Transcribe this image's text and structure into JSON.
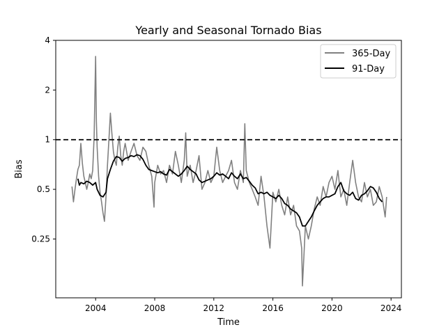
{
  "chart_data": {
    "type": "line",
    "title": "Yearly and Seasonal Tornado Bias",
    "xlabel": "Time",
    "ylabel": "Bias",
    "y_scale": "log2",
    "xlim": [
      2001.3,
      2024.7
    ],
    "ylim": [
      0.11,
      4
    ],
    "x_ticks": [
      {
        "value": 2004,
        "label": "2004"
      },
      {
        "value": 2008,
        "label": "2008"
      },
      {
        "value": 2012,
        "label": "2012"
      },
      {
        "value": 2016,
        "label": "2016"
      },
      {
        "value": 2020,
        "label": "2020"
      },
      {
        "value": 2024,
        "label": "2024"
      }
    ],
    "y_ticks": [
      {
        "value": 0.25,
        "label": "0.25"
      },
      {
        "value": 0.5,
        "label": "0.5"
      },
      {
        "value": 1,
        "label": "1"
      },
      {
        "value": 2,
        "label": "2"
      },
      {
        "value": 4,
        "label": "4"
      }
    ],
    "grid": false,
    "legend_position": "top-right",
    "reference_line": {
      "y": 1,
      "style": "dashed",
      "color": "#000000"
    },
    "series": [
      {
        "name": "365-Day",
        "color": "#808080",
        "x": [
          2002.4,
          2002.5,
          2002.6,
          2002.7,
          2002.8,
          2002.9,
          2003.0,
          2003.1,
          2003.2,
          2003.3,
          2003.4,
          2003.5,
          2003.6,
          2003.7,
          2003.8,
          2003.9,
          2004.0,
          2004.05,
          2004.1,
          2004.2,
          2004.3,
          2004.4,
          2004.5,
          2004.6,
          2004.7,
          2004.8,
          2004.9,
          2005.0,
          2005.1,
          2005.2,
          2005.3,
          2005.4,
          2005.5,
          2005.6,
          2005.7,
          2005.8,
          2005.9,
          2006.0,
          2006.2,
          2006.4,
          2006.6,
          2006.8,
          2007.0,
          2007.2,
          2007.4,
          2007.6,
          2007.8,
          2007.95,
          2008.0,
          2008.2,
          2008.4,
          2008.6,
          2008.8,
          2009.0,
          2009.2,
          2009.4,
          2009.6,
          2009.8,
          2010.0,
          2010.1,
          2010.2,
          2010.4,
          2010.6,
          2010.8,
          2011.0,
          2011.2,
          2011.4,
          2011.6,
          2011.8,
          2012.0,
          2012.2,
          2012.4,
          2012.6,
          2012.8,
          2013.0,
          2013.2,
          2013.4,
          2013.6,
          2013.8,
          2014.0,
          2014.1,
          2014.2,
          2014.4,
          2014.6,
          2014.8,
          2015.0,
          2015.2,
          2015.4,
          2015.6,
          2015.8,
          2016.0,
          2016.2,
          2016.4,
          2016.6,
          2016.8,
          2017.0,
          2017.2,
          2017.4,
          2017.6,
          2017.8,
          2017.95,
          2018.0,
          2018.2,
          2018.4,
          2018.6,
          2018.8,
          2019.0,
          2019.2,
          2019.4,
          2019.6,
          2019.8,
          2020.0,
          2020.2,
          2020.4,
          2020.6,
          2020.8,
          2021.0,
          2021.2,
          2021.4,
          2021.6,
          2021.8,
          2022.0,
          2022.2,
          2022.4,
          2022.6,
          2022.8,
          2023.0,
          2023.2,
          2023.4,
          2023.6,
          2023.7
        ],
        "y": [
          0.52,
          0.42,
          0.5,
          0.58,
          0.66,
          0.7,
          0.95,
          0.72,
          0.6,
          0.55,
          0.5,
          0.55,
          0.62,
          0.58,
          0.65,
          1.05,
          3.2,
          1.3,
          0.9,
          0.6,
          0.48,
          0.42,
          0.36,
          0.32,
          0.45,
          0.7,
          1.0,
          1.45,
          1.1,
          0.85,
          0.75,
          0.7,
          0.9,
          1.05,
          0.8,
          0.7,
          0.85,
          0.95,
          0.75,
          0.85,
          0.95,
          0.8,
          0.75,
          0.9,
          0.85,
          0.7,
          0.6,
          0.39,
          0.55,
          0.7,
          0.62,
          0.65,
          0.55,
          0.7,
          0.62,
          0.85,
          0.7,
          0.55,
          0.75,
          1.1,
          0.6,
          0.7,
          0.55,
          0.65,
          0.8,
          0.5,
          0.55,
          0.65,
          0.55,
          0.6,
          0.9,
          0.65,
          0.55,
          0.6,
          0.65,
          0.75,
          0.55,
          0.5,
          0.65,
          0.55,
          1.25,
          0.65,
          0.55,
          0.5,
          0.45,
          0.4,
          0.6,
          0.45,
          0.3,
          0.22,
          0.48,
          0.42,
          0.5,
          0.4,
          0.35,
          0.45,
          0.35,
          0.4,
          0.3,
          0.28,
          0.22,
          0.13,
          0.3,
          0.25,
          0.3,
          0.38,
          0.45,
          0.4,
          0.52,
          0.45,
          0.55,
          0.6,
          0.5,
          0.65,
          0.45,
          0.5,
          0.4,
          0.55,
          0.75,
          0.55,
          0.45,
          0.42,
          0.55,
          0.45,
          0.5,
          0.4,
          0.42,
          0.52,
          0.45,
          0.34,
          0.45
        ]
      },
      {
        "name": "91-Day",
        "color": "#000000",
        "x": [
          2002.8,
          2002.9,
          2003.0,
          2003.2,
          2003.4,
          2003.6,
          2003.8,
          2004.0,
          2004.1,
          2004.3,
          2004.5,
          2004.7,
          2004.8,
          2005.0,
          2005.2,
          2005.4,
          2005.6,
          2005.8,
          2006.0,
          2006.2,
          2006.4,
          2006.6,
          2006.8,
          2007.0,
          2007.2,
          2007.4,
          2007.6,
          2007.8,
          2008.0,
          2008.2,
          2008.4,
          2008.6,
          2008.8,
          2009.0,
          2009.2,
          2009.4,
          2009.6,
          2009.8,
          2010.0,
          2010.2,
          2010.4,
          2010.6,
          2010.8,
          2011.0,
          2011.2,
          2011.4,
          2011.6,
          2011.8,
          2012.0,
          2012.2,
          2012.4,
          2012.6,
          2012.8,
          2013.0,
          2013.2,
          2013.4,
          2013.6,
          2013.8,
          2014.0,
          2014.2,
          2014.4,
          2014.6,
          2014.8,
          2015.0,
          2015.2,
          2015.4,
          2015.6,
          2015.8,
          2016.0,
          2016.2,
          2016.4,
          2016.6,
          2016.8,
          2017.0,
          2017.2,
          2017.4,
          2017.6,
          2017.8,
          2018.0,
          2018.2,
          2018.4,
          2018.6,
          2018.8,
          2019.0,
          2019.2,
          2019.4,
          2019.6,
          2019.8,
          2020.0,
          2020.2,
          2020.4,
          2020.6,
          2020.8,
          2021.0,
          2021.2,
          2021.4,
          2021.6,
          2021.8,
          2022.0,
          2022.2,
          2022.4,
          2022.6,
          2022.8,
          2023.0,
          2023.2,
          2023.4
        ],
        "y": [
          0.58,
          0.53,
          0.55,
          0.54,
          0.56,
          0.55,
          0.53,
          0.55,
          0.5,
          0.46,
          0.45,
          0.48,
          0.58,
          0.66,
          0.74,
          0.79,
          0.78,
          0.74,
          0.77,
          0.78,
          0.8,
          0.79,
          0.81,
          0.8,
          0.76,
          0.7,
          0.66,
          0.65,
          0.64,
          0.63,
          0.64,
          0.62,
          0.61,
          0.66,
          0.64,
          0.62,
          0.6,
          0.62,
          0.65,
          0.69,
          0.66,
          0.64,
          0.62,
          0.57,
          0.55,
          0.56,
          0.57,
          0.58,
          0.6,
          0.63,
          0.61,
          0.62,
          0.6,
          0.58,
          0.63,
          0.6,
          0.58,
          0.62,
          0.58,
          0.59,
          0.56,
          0.53,
          0.51,
          0.47,
          0.48,
          0.47,
          0.48,
          0.46,
          0.45,
          0.44,
          0.46,
          0.44,
          0.41,
          0.4,
          0.38,
          0.37,
          0.36,
          0.34,
          0.3,
          0.3,
          0.32,
          0.34,
          0.37,
          0.4,
          0.42,
          0.44,
          0.45,
          0.45,
          0.46,
          0.47,
          0.52,
          0.55,
          0.49,
          0.47,
          0.46,
          0.48,
          0.44,
          0.43,
          0.46,
          0.47,
          0.49,
          0.52,
          0.51,
          0.48,
          0.44,
          0.42
        ]
      }
    ]
  }
}
